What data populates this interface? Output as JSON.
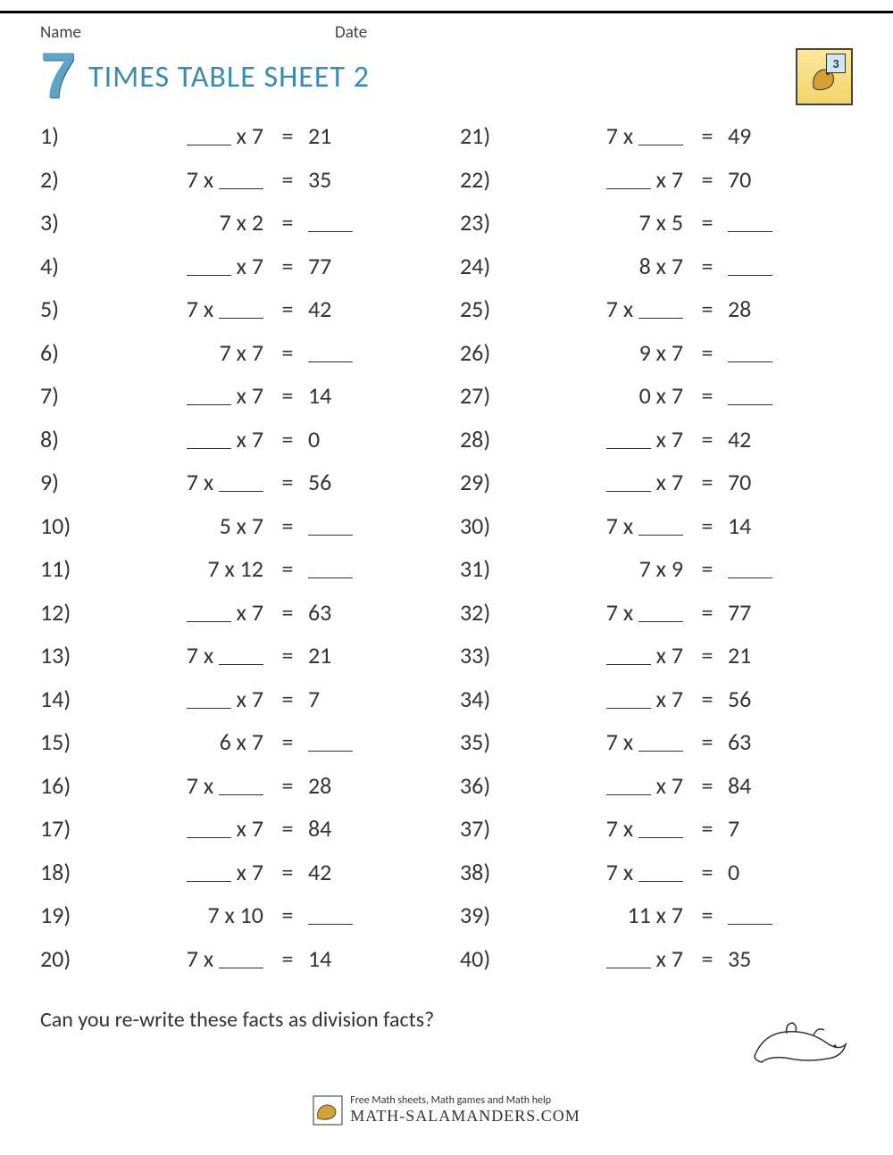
{
  "header": {
    "name_label": "Name",
    "date_label": "Date",
    "grade_number": "3"
  },
  "title": {
    "big_digit": "7",
    "text": "TIMES TABLE SHEET 2"
  },
  "footer_question": "Can you re-write these facts as division facts?",
  "site": {
    "tagline": "Free Math sheets, Math games and Math help",
    "url": "MATH-SALAMANDERS.COM"
  },
  "equals": "=",
  "problems": [
    {
      "n": "1)",
      "left": "___",
      "op": " x 7",
      "ans": "21"
    },
    {
      "n": "2)",
      "left": "7 x ",
      "op": "___",
      "ans": "35"
    },
    {
      "n": "3)",
      "left": "7 x 2",
      "op": "",
      "ans": "___"
    },
    {
      "n": "4)",
      "left": "___",
      "op": " x 7",
      "ans": "77"
    },
    {
      "n": "5)",
      "left": "7 x ",
      "op": "___",
      "ans": "42"
    },
    {
      "n": "6)",
      "left": "7 x 7",
      "op": "",
      "ans": "___"
    },
    {
      "n": "7)",
      "left": "___",
      "op": " x 7",
      "ans": "14"
    },
    {
      "n": "8)",
      "left": "___",
      "op": " x 7",
      "ans": "0"
    },
    {
      "n": "9)",
      "left": "7 x ",
      "op": "___",
      "ans": "56"
    },
    {
      "n": "10)",
      "left": "5 x 7",
      "op": "",
      "ans": "___"
    },
    {
      "n": "11)",
      "left": "7 x 12",
      "op": "",
      "ans": "___"
    },
    {
      "n": "12)",
      "left": "___",
      "op": " x 7",
      "ans": "63"
    },
    {
      "n": "13)",
      "left": "7 x ",
      "op": "___",
      "ans": "21"
    },
    {
      "n": "14)",
      "left": "___",
      "op": " x 7",
      "ans": "7"
    },
    {
      "n": "15)",
      "left": "6 x 7",
      "op": "",
      "ans": "___"
    },
    {
      "n": "16)",
      "left": "7 x ",
      "op": "___",
      "ans": "28"
    },
    {
      "n": "17)",
      "left": "___",
      "op": " x 7",
      "ans": "84"
    },
    {
      "n": "18)",
      "left": "___",
      "op": " x 7",
      "ans": "42"
    },
    {
      "n": "19)",
      "left": "7 x 10",
      "op": "",
      "ans": "___"
    },
    {
      "n": "20)",
      "left": "7 x ",
      "op": "___",
      "ans": "14"
    },
    {
      "n": "21)",
      "left": "7 x ",
      "op": "___",
      "ans": "49"
    },
    {
      "n": "22)",
      "left": "___",
      "op": " x 7",
      "ans": "70"
    },
    {
      "n": "23)",
      "left": "7 x 5",
      "op": "",
      "ans": "___"
    },
    {
      "n": "24)",
      "left": "8 x 7",
      "op": "",
      "ans": "___"
    },
    {
      "n": "25)",
      "left": "7 x ",
      "op": "___",
      "ans": "28"
    },
    {
      "n": "26)",
      "left": "9 x 7",
      "op": "",
      "ans": "___"
    },
    {
      "n": "27)",
      "left": "0 x 7",
      "op": "",
      "ans": "___"
    },
    {
      "n": "28)",
      "left": "___",
      "op": " x 7",
      "ans": "42"
    },
    {
      "n": "29)",
      "left": "___",
      "op": " x 7",
      "ans": "70"
    },
    {
      "n": "30)",
      "left": "7 x ",
      "op": "___",
      "ans": "14"
    },
    {
      "n": "31)",
      "left": "7 x 9",
      "op": "",
      "ans": "___"
    },
    {
      "n": "32)",
      "left": "7 x ",
      "op": "___",
      "ans": "77"
    },
    {
      "n": "33)",
      "left": "___",
      "op": " x 7",
      "ans": "21"
    },
    {
      "n": "34)",
      "left": "___",
      "op": " x 7",
      "ans": "56"
    },
    {
      "n": "35)",
      "left": "7 x ",
      "op": "___",
      "ans": "63"
    },
    {
      "n": "36)",
      "left": "___",
      "op": " x 7",
      "ans": "84"
    },
    {
      "n": "37)",
      "left": "7 x ",
      "op": "___",
      "ans": "7"
    },
    {
      "n": "38)",
      "left": "7 x ",
      "op": "___",
      "ans": "0"
    },
    {
      "n": "39)",
      "left": "11 x 7",
      "op": "",
      "ans": "___"
    },
    {
      "n": "40)",
      "left": "___",
      "op": " x 7",
      "ans": "35"
    }
  ]
}
